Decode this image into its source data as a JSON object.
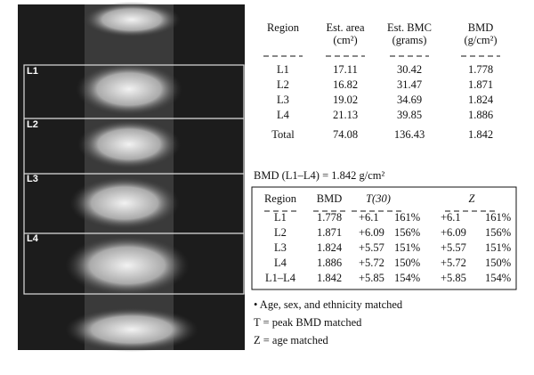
{
  "image_labels": [
    "L1",
    "L2",
    "L3",
    "L4"
  ],
  "table1": {
    "headers": [
      [
        "Region"
      ],
      [
        "Est. area",
        "(cm²)"
      ],
      [
        "Est. BMC",
        "(grams)"
      ],
      [
        "BMD",
        "(g/cm²)"
      ]
    ],
    "rows": [
      [
        "L1",
        "17.11",
        "30.42",
        "1.778"
      ],
      [
        "L2",
        "16.82",
        "31.47",
        "1.871"
      ],
      [
        "L3",
        "19.02",
        "34.69",
        "1.824"
      ],
      [
        "L4",
        "21.13",
        "39.85",
        "1.886"
      ],
      [
        "Total",
        "74.08",
        "136.43",
        "1.842"
      ]
    ]
  },
  "bmd_summary": "BMD (L1–L4) = 1.842 g/cm²",
  "table2": {
    "headers": [
      "Region",
      "BMD",
      "T(30)",
      "Z"
    ],
    "rows": [
      [
        "L1",
        "1.778",
        "+6.1",
        "161%",
        "+6.1",
        "161%"
      ],
      [
        "L2",
        "1.871",
        "+6.09",
        "156%",
        "+6.09",
        "156%"
      ],
      [
        "L3",
        "1.824",
        "+5.57",
        "151%",
        "+5.57",
        "151%"
      ],
      [
        "L4",
        "1.886",
        "+5.72",
        "150%",
        "+5.72",
        "150%"
      ],
      [
        "L1–L4",
        "1.842",
        "+5.85",
        "154%",
        "+5.85",
        "154%"
      ]
    ]
  },
  "notes": [
    "• Age, sex, and ethnicity matched",
    "T = peak BMD matched",
    "Z = age matched"
  ]
}
